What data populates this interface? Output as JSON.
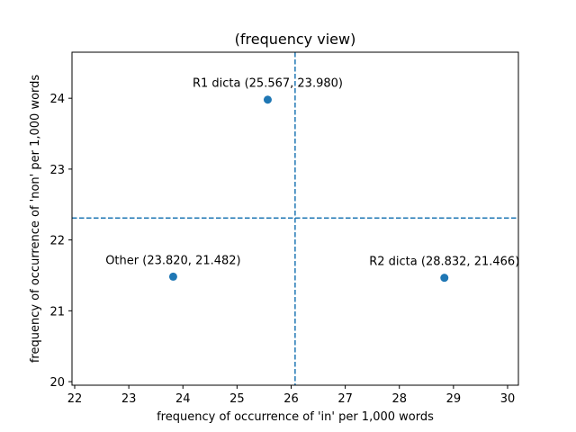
{
  "chart_data": {
    "type": "scatter",
    "title": "(frequency view)",
    "xlabel": "frequency of occurrence of 'in' per 1,000 words",
    "ylabel": "frequency of occurrence of 'non' per 1,000 words",
    "xlim": [
      21.95,
      30.2
    ],
    "ylim": [
      19.95,
      24.65
    ],
    "xticks": [
      "22",
      "23",
      "24",
      "25",
      "26",
      "27",
      "28",
      "29",
      "30"
    ],
    "yticks": [
      "20",
      "21",
      "22",
      "23",
      "24"
    ],
    "grid": false,
    "points": [
      {
        "x": 25.567,
        "y": 23.98,
        "label": "R1 dicta (25.567, 23.980)"
      },
      {
        "x": 23.82,
        "y": 21.482,
        "label": "Other (23.820, 21.482)"
      },
      {
        "x": 28.832,
        "y": 21.466,
        "label": "R2 dicta (28.832, 21.466)"
      }
    ],
    "reference_lines": {
      "vertical_x": 26.073,
      "horizontal_y": 22.309
    },
    "colors": {
      "marker": "#1f77b4",
      "reference_line": "#1f77b4",
      "axes": "#000000"
    }
  }
}
